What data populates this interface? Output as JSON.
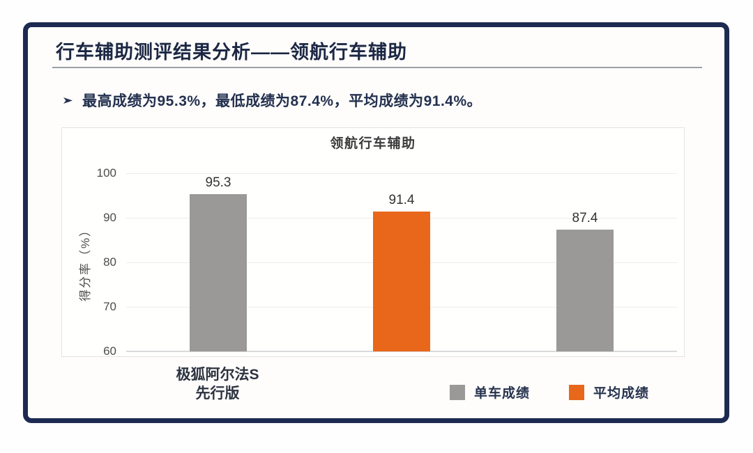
{
  "slide": {
    "title": "行车辅助测评结果分析——领航行车辅助",
    "bullet": "最高成绩为95.3%，最低成绩为87.4%，平均成绩为91.4%。",
    "bullet_marker_icon": "arrowhead-right"
  },
  "colors": {
    "navy_border": "#1d2b52",
    "title_navy": "#1c2744",
    "bar_gray": "#9b9998",
    "bar_orange": "#e8671b"
  },
  "chart_data": {
    "type": "bar",
    "title": "领航行车辅助",
    "ylabel": "得分率（%）",
    "ylim": [
      60,
      100
    ],
    "yticks": [
      100,
      90,
      80,
      70,
      60
    ],
    "grid": "horizontal",
    "legend_position": "bottom-right",
    "bars": [
      {
        "value": 95.3,
        "label": "95.3",
        "series": "单车成绩",
        "color": "#9b9998",
        "category": "极狐阿尔法S 先行版",
        "category_lines": [
          "极狐阿尔法S",
          "先行版"
        ]
      },
      {
        "value": 91.4,
        "label": "91.4",
        "series": "平均成绩",
        "color": "#e8671b",
        "category": ""
      },
      {
        "value": 87.4,
        "label": "87.4",
        "series": "单车成绩",
        "color": "#9b9998",
        "category": ""
      }
    ],
    "legend": [
      {
        "label": "单车成绩",
        "color": "#9b9998"
      },
      {
        "label": "平均成绩",
        "color": "#e8671b"
      }
    ]
  }
}
